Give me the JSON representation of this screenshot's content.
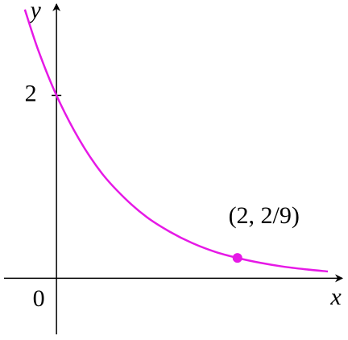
{
  "chart_data": {
    "type": "line",
    "x_label": "x",
    "y_label": "y",
    "x": [
      -0.35,
      -0.2,
      0,
      0.25,
      0.5,
      0.75,
      1,
      1.25,
      1.5,
      1.75,
      2,
      2.25,
      2.5,
      2.75,
      3
    ],
    "values": [
      2.94,
      2.49,
      2,
      1.52,
      1.15,
      0.88,
      0.667,
      0.51,
      0.385,
      0.29,
      0.222,
      0.169,
      0.128,
      0.098,
      0.074
    ],
    "color": "#e619e6",
    "xlim": [
      -0.58,
      3.16
    ],
    "ylim": [
      -0.57,
      3.0
    ],
    "xticks": [
      0
    ],
    "yticks": [
      2
    ],
    "point": {
      "x": 2,
      "y": 0.222,
      "label": "(2, 2/9)"
    }
  }
}
